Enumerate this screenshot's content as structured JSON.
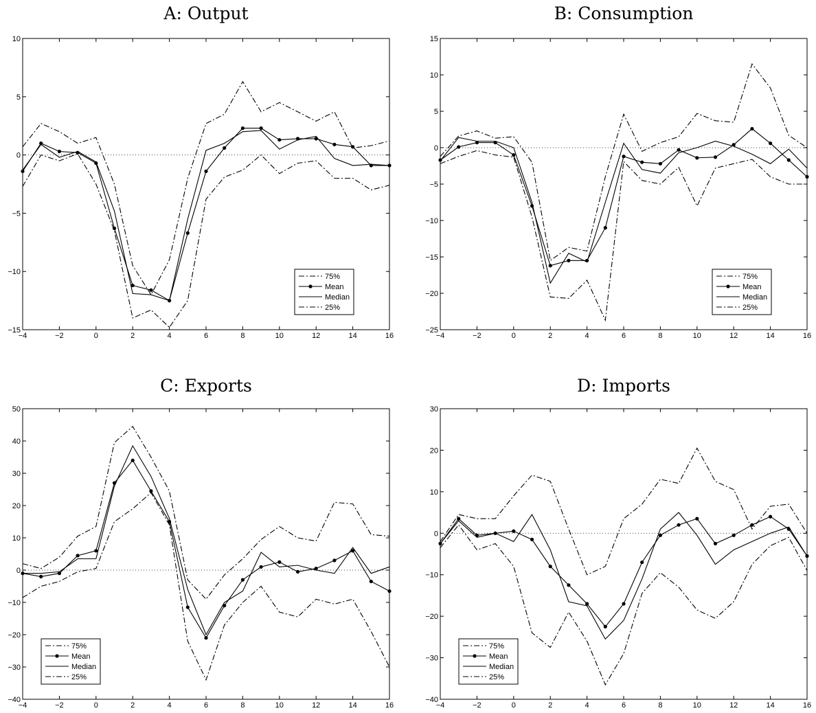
{
  "chart_data": [
    {
      "type": "line",
      "title": "A: Output",
      "xlabel": "",
      "ylabel": "",
      "xlim": [
        -4,
        16
      ],
      "ylim": [
        -15,
        10
      ],
      "xticks": [
        -4,
        -2,
        0,
        2,
        4,
        6,
        8,
        10,
        12,
        14,
        16
      ],
      "yticks": [
        -15,
        -10,
        -5,
        0,
        5,
        10
      ],
      "zero_line": true,
      "legend_position": "lower-right",
      "x": [
        -4,
        -3,
        -2,
        -1,
        0,
        1,
        2,
        3,
        4,
        5,
        6,
        7,
        8,
        9,
        10,
        11,
        12,
        13,
        14,
        15,
        16
      ],
      "series": [
        {
          "name": "75%",
          "style": "dashdot",
          "values": [
            0.7,
            2.7,
            2.0,
            1.0,
            1.5,
            -2.5,
            -9.5,
            -12.0,
            -9.0,
            -2.0,
            2.7,
            3.5,
            6.3,
            3.7,
            4.5,
            3.7,
            2.9,
            3.7,
            0.6,
            0.8,
            1.2
          ]
        },
        {
          "name": "Mean",
          "style": "marker",
          "values": [
            -1.4,
            1.0,
            0.3,
            0.2,
            -0.7,
            -6.3,
            -11.2,
            -11.6,
            -12.5,
            -6.7,
            -1.4,
            0.6,
            2.3,
            2.3,
            1.3,
            1.4,
            1.4,
            0.9,
            0.7,
            -0.9,
            -0.9
          ]
        },
        {
          "name": "Median",
          "style": "solid",
          "values": [
            -1.3,
            0.9,
            -0.2,
            0.3,
            -0.6,
            -4.8,
            -11.9,
            -12.0,
            -12.5,
            -5.5,
            0.4,
            1.0,
            2.0,
            2.1,
            0.5,
            1.3,
            1.6,
            -0.3,
            -0.9,
            -0.8,
            -0.9
          ]
        },
        {
          "name": "25%",
          "style": "dashdot",
          "values": [
            -2.7,
            0.0,
            -0.5,
            0.1,
            -2.5,
            -6.5,
            -14.0,
            -13.3,
            -14.8,
            -12.5,
            -3.8,
            -1.9,
            -1.3,
            0.0,
            -1.6,
            -0.7,
            -0.5,
            -2.0,
            -2.0,
            -3.0,
            -2.6
          ]
        }
      ]
    },
    {
      "type": "line",
      "title": "B: Consumption",
      "xlabel": "",
      "ylabel": "",
      "xlim": [
        -4,
        16
      ],
      "ylim": [
        -25,
        15
      ],
      "xticks": [
        -4,
        -2,
        0,
        2,
        4,
        6,
        8,
        10,
        12,
        14,
        16
      ],
      "yticks": [
        -25,
        -20,
        -15,
        -10,
        -5,
        0,
        5,
        10,
        15
      ],
      "zero_line": true,
      "legend_position": "lower-right",
      "x": [
        -4,
        -3,
        -2,
        -1,
        0,
        1,
        2,
        3,
        4,
        5,
        6,
        7,
        8,
        9,
        10,
        11,
        12,
        13,
        14,
        15,
        16
      ],
      "series": [
        {
          "name": "75%",
          "style": "dashdot",
          "values": [
            -1.2,
            1.6,
            2.3,
            1.3,
            1.5,
            -2.0,
            -15.5,
            -13.7,
            -14.2,
            -4.0,
            4.6,
            -0.5,
            0.7,
            1.5,
            4.7,
            3.7,
            3.5,
            11.5,
            8.2,
            1.7,
            0.0
          ]
        },
        {
          "name": "Mean",
          "style": "marker",
          "values": [
            -1.7,
            0.1,
            0.7,
            0.7,
            -1.0,
            -8.0,
            -16.2,
            -15.5,
            -15.5,
            -11.0,
            -1.2,
            -2.0,
            -2.2,
            -0.3,
            -1.4,
            -1.3,
            0.4,
            2.6,
            0.6,
            -1.7,
            -4.0
          ]
        },
        {
          "name": "Median",
          "style": "solid",
          "values": [
            -1.8,
            1.4,
            0.9,
            0.9,
            0.0,
            -7.5,
            -18.6,
            -14.5,
            -15.7,
            -7.5,
            0.6,
            -3.0,
            -3.5,
            -0.7,
            0.0,
            0.9,
            0.2,
            -0.9,
            -2.2,
            -0.2,
            -2.8
          ]
        },
        {
          "name": "25%",
          "style": "dashdot",
          "values": [
            -2.2,
            -1.2,
            -0.4,
            -1.0,
            -1.3,
            -9.5,
            -20.5,
            -20.7,
            -18.2,
            -23.7,
            -1.9,
            -4.5,
            -5.0,
            -2.7,
            -8.0,
            -2.8,
            -2.2,
            -1.6,
            -4.0,
            -5.0,
            -5.0
          ]
        }
      ]
    },
    {
      "type": "line",
      "title": "C: Exports",
      "xlabel": "",
      "ylabel": "",
      "xlim": [
        -4,
        16
      ],
      "ylim": [
        -40,
        50
      ],
      "xticks": [
        -4,
        -2,
        0,
        2,
        4,
        6,
        8,
        10,
        12,
        14,
        16
      ],
      "yticks": [
        -40,
        -30,
        -20,
        -10,
        0,
        10,
        20,
        30,
        40,
        50
      ],
      "zero_line": true,
      "legend_position": "lower-left",
      "x": [
        -4,
        -3,
        -2,
        -1,
        0,
        1,
        2,
        3,
        4,
        5,
        6,
        7,
        8,
        9,
        10,
        11,
        12,
        13,
        14,
        15,
        16
      ],
      "series": [
        {
          "name": "75%",
          "style": "dashdot",
          "values": [
            2.0,
            0.5,
            4.0,
            10.5,
            13.5,
            39.5,
            44.5,
            35.0,
            24.5,
            -3.0,
            -9.0,
            -1.5,
            3.5,
            9.5,
            13.5,
            10.0,
            9.0,
            21.0,
            20.5,
            11.0,
            10.5
          ]
        },
        {
          "name": "Mean",
          "style": "marker",
          "values": [
            -1.0,
            -2.0,
            -1.0,
            4.5,
            6.0,
            27.0,
            34.0,
            24.5,
            15.0,
            -11.5,
            -21.0,
            -11.0,
            -3.0,
            1.0,
            2.5,
            -0.5,
            0.5,
            3.0,
            6.0,
            -3.5,
            -6.5
          ]
        },
        {
          "name": "Median",
          "style": "solid",
          "values": [
            -1.0,
            -1.0,
            -0.5,
            3.5,
            3.5,
            26.0,
            38.5,
            29.0,
            16.0,
            -6.0,
            -20.0,
            -10.0,
            -6.5,
            5.5,
            1.0,
            1.5,
            0.0,
            -1.0,
            7.0,
            -1.0,
            1.0
          ]
        },
        {
          "name": "25%",
          "style": "dashdot",
          "values": [
            -8.5,
            -5.0,
            -3.5,
            -0.5,
            0.5,
            15.0,
            19.0,
            24.0,
            14.0,
            -22.0,
            -34.0,
            -17.0,
            -10.0,
            -5.0,
            -13.0,
            -14.5,
            -9.0,
            -10.5,
            -9.0,
            -19.0,
            -30.0
          ]
        }
      ]
    },
    {
      "type": "line",
      "title": "D: Imports",
      "xlabel": "",
      "ylabel": "",
      "xlim": [
        -4,
        16
      ],
      "ylim": [
        -40,
        30
      ],
      "xticks": [
        -4,
        -2,
        0,
        2,
        4,
        6,
        8,
        10,
        12,
        14,
        16
      ],
      "yticks": [
        -40,
        -30,
        -20,
        -10,
        0,
        10,
        20,
        30
      ],
      "zero_line": true,
      "legend_position": "lower-left",
      "x": [
        -4,
        -3,
        -2,
        -1,
        0,
        1,
        2,
        3,
        4,
        5,
        6,
        7,
        8,
        9,
        10,
        11,
        12,
        13,
        14,
        15,
        16
      ],
      "series": [
        {
          "name": "75%",
          "style": "dashdot",
          "values": [
            -2.0,
            4.5,
            3.5,
            3.5,
            9.0,
            14.0,
            12.5,
            1.0,
            -10.0,
            -8.0,
            3.5,
            7.0,
            13.0,
            12.0,
            20.5,
            12.5,
            10.5,
            1.0,
            6.5,
            7.0,
            0.0
          ]
        },
        {
          "name": "Mean",
          "style": "marker",
          "values": [
            -2.5,
            3.5,
            -0.5,
            0.0,
            0.5,
            -1.5,
            -8.0,
            -12.5,
            -17.0,
            -22.5,
            -17.0,
            -7.0,
            -0.5,
            2.0,
            3.5,
            -2.5,
            -0.5,
            2.0,
            4.0,
            1.0,
            -5.5
          ]
        },
        {
          "name": "Median",
          "style": "solid",
          "values": [
            -2.5,
            3.0,
            -1.0,
            0.0,
            -2.0,
            4.5,
            -4.0,
            -16.5,
            -17.5,
            -25.5,
            -21.0,
            -11.0,
            1.0,
            5.0,
            -0.5,
            -7.5,
            -4.0,
            -2.0,
            0.0,
            1.5,
            -5.5
          ]
        },
        {
          "name": "25%",
          "style": "dashdot",
          "values": [
            -3.5,
            2.0,
            -4.0,
            -2.5,
            -8.0,
            -24.0,
            -27.5,
            -19.0,
            -26.0,
            -36.5,
            -29.0,
            -14.5,
            -9.5,
            -13.0,
            -18.5,
            -20.5,
            -16.5,
            -7.5,
            -3.0,
            -1.0,
            -9.0
          ]
        }
      ]
    }
  ]
}
